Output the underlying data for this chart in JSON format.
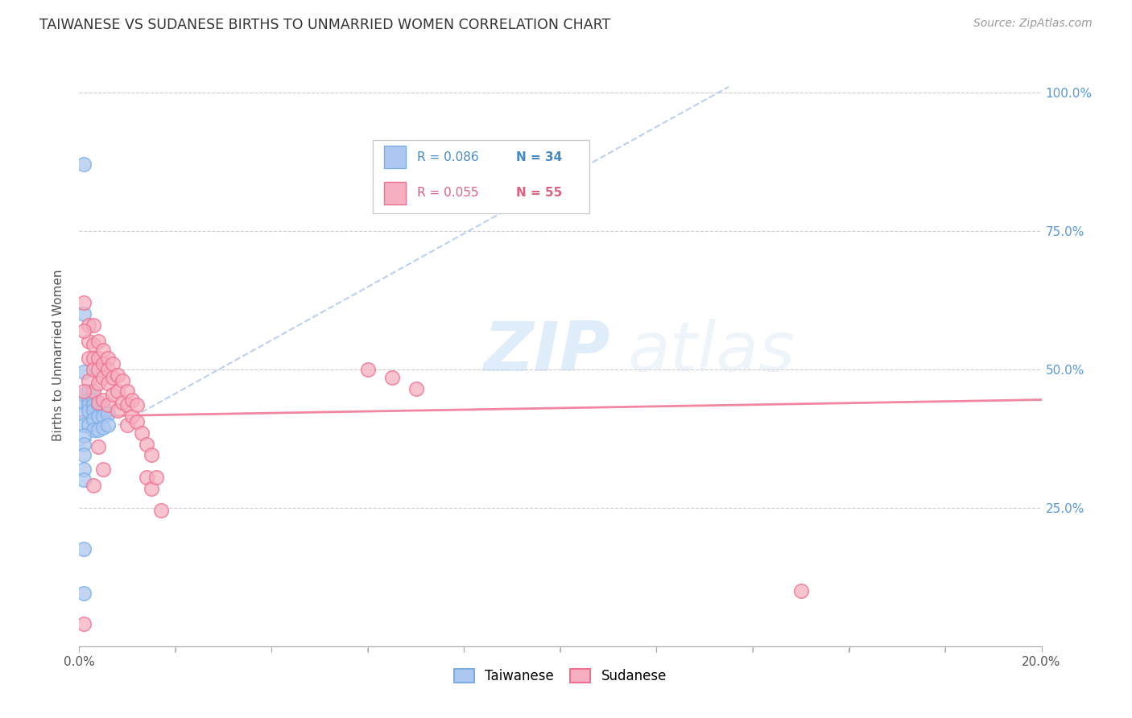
{
  "title": "TAIWANESE VS SUDANESE BIRTHS TO UNMARRIED WOMEN CORRELATION CHART",
  "source": "Source: ZipAtlas.com",
  "ylabel": "Births to Unmarried Women",
  "xlim": [
    0.0,
    0.2
  ],
  "ylim": [
    0.0,
    1.05
  ],
  "taiwan_color": "#adc8f0",
  "taiwan_edge": "#7aaee8",
  "sudan_color": "#f5afc0",
  "sudan_edge": "#f07090",
  "taiwan_trend_color": "#aac4ee",
  "sudan_trend_color": "#f07090",
  "taiwan_scatter_x": [
    0.001,
    0.001,
    0.001,
    0.001,
    0.001,
    0.001,
    0.001,
    0.002,
    0.002,
    0.002,
    0.002,
    0.002,
    0.003,
    0.003,
    0.003,
    0.003,
    0.003,
    0.003,
    0.004,
    0.004,
    0.004,
    0.004,
    0.005,
    0.005,
    0.005,
    0.006,
    0.006,
    0.001,
    0.001,
    0.001,
    0.001,
    0.001,
    0.001,
    0.001
  ],
  "taiwan_scatter_y": [
    0.87,
    0.6,
    0.495,
    0.455,
    0.44,
    0.42,
    0.4,
    0.46,
    0.445,
    0.435,
    0.425,
    0.4,
    0.455,
    0.445,
    0.435,
    0.425,
    0.41,
    0.39,
    0.44,
    0.435,
    0.415,
    0.39,
    0.43,
    0.415,
    0.395,
    0.42,
    0.4,
    0.38,
    0.365,
    0.345,
    0.32,
    0.3,
    0.175,
    0.095
  ],
  "sudan_scatter_x": [
    0.001,
    0.001,
    0.002,
    0.002,
    0.002,
    0.002,
    0.003,
    0.003,
    0.003,
    0.003,
    0.003,
    0.004,
    0.004,
    0.004,
    0.004,
    0.004,
    0.005,
    0.005,
    0.005,
    0.005,
    0.006,
    0.006,
    0.006,
    0.006,
    0.007,
    0.007,
    0.007,
    0.008,
    0.008,
    0.008,
    0.009,
    0.009,
    0.01,
    0.01,
    0.01,
    0.011,
    0.011,
    0.012,
    0.012,
    0.013,
    0.014,
    0.014,
    0.015,
    0.015,
    0.016,
    0.017,
    0.06,
    0.065,
    0.07,
    0.003,
    0.004,
    0.005,
    0.15,
    0.001,
    0.001
  ],
  "sudan_scatter_y": [
    0.62,
    0.04,
    0.58,
    0.55,
    0.52,
    0.48,
    0.58,
    0.545,
    0.52,
    0.5,
    0.46,
    0.55,
    0.52,
    0.5,
    0.475,
    0.44,
    0.535,
    0.51,
    0.485,
    0.445,
    0.52,
    0.5,
    0.475,
    0.435,
    0.51,
    0.485,
    0.455,
    0.49,
    0.46,
    0.425,
    0.48,
    0.44,
    0.46,
    0.435,
    0.4,
    0.445,
    0.415,
    0.435,
    0.405,
    0.385,
    0.365,
    0.305,
    0.345,
    0.285,
    0.305,
    0.245,
    0.5,
    0.485,
    0.465,
    0.29,
    0.36,
    0.32,
    0.1,
    0.57,
    0.46
  ],
  "taiwan_trend_x0": 0.0,
  "taiwan_trend_y0": 0.36,
  "taiwan_trend_x1": 0.135,
  "taiwan_trend_y1": 1.01,
  "sudan_trend_x0": 0.0,
  "sudan_trend_y0": 0.415,
  "sudan_trend_x1": 0.2,
  "sudan_trend_y1": 0.445,
  "watermark_zip": "ZIP",
  "watermark_atlas": "atlas",
  "background_color": "#ffffff",
  "grid_color": "#cccccc",
  "legend_r_taiwan": "R = 0.086",
  "legend_n_taiwan": "N = 34",
  "legend_r_sudan": "R = 0.055",
  "legend_n_sudan": "N = 55"
}
